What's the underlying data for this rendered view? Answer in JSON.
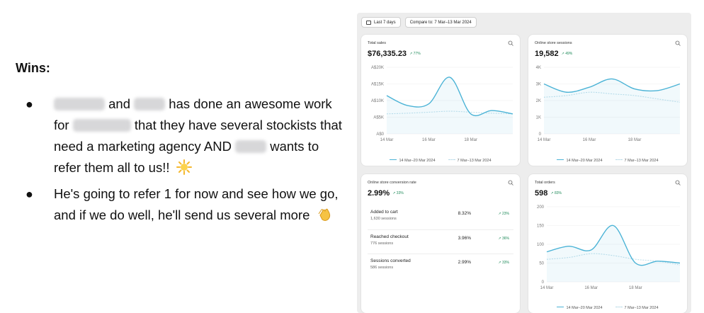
{
  "slide": {
    "heading": "Wins:",
    "bullet1": {
      "t1": "and",
      "t2": "has done an awesome work for",
      "t3": "that they have several stockists that need a marketing agency AND",
      "t4": "wants to refer them all to us!!"
    },
    "bullet2": "He's going to refer 1 for now and see how we go, and if we do well, he'll send us several more"
  },
  "filters": {
    "date_range": "Last 7 days",
    "compare": "Compare to: 7 Mar–13 Mar 2024"
  },
  "legend": {
    "current": "14 Mar–20 Mar 2024",
    "previous": "7 Mar–13 Mar 2024"
  },
  "colors": {
    "current": "#4bb3d6",
    "previous": "#bfe0ec",
    "positive": "#1f8a5a"
  },
  "cards": {
    "total_sales": {
      "title": "Total sales",
      "value": "$76,335.23",
      "delta": "↗ 77%",
      "y_ticks": [
        "A$20K",
        "A$15K",
        "A$10K",
        "A$5K",
        "A$0"
      ],
      "x_ticks": [
        "14 Mar",
        "16 Mar",
        "18 Mar"
      ]
    },
    "sessions": {
      "title": "Online store sessions",
      "value": "19,582",
      "delta": "↗ 49%",
      "y_ticks": [
        "4K",
        "3K",
        "2K",
        "1K",
        "0"
      ],
      "x_ticks": [
        "14 Mar",
        "16 Mar",
        "18 Mar"
      ]
    },
    "conversion": {
      "title": "Online store conversion rate",
      "value": "2.99%",
      "delta": "↗ 33%",
      "rows": [
        {
          "label": "Added to cart",
          "sessions": "1,630 sessions",
          "pct": "8.32%",
          "delta": "↗ 23%"
        },
        {
          "label": "Reached checkout",
          "sessions": "776 sessions",
          "pct": "3.96%",
          "delta": "↗ 36%"
        },
        {
          "label": "Sessions converted",
          "sessions": "586 sessions",
          "pct": "2.99%",
          "delta": "↗ 33%"
        }
      ]
    },
    "orders": {
      "title": "Total orders",
      "value": "598",
      "delta": "↗ 83%",
      "y_ticks": [
        "200",
        "150",
        "100",
        "50",
        "0"
      ],
      "x_ticks": [
        "14 Mar",
        "16 Mar",
        "18 Mar"
      ]
    }
  },
  "chart_data": [
    {
      "type": "line",
      "title": "Total sales",
      "x": [
        "14 Mar",
        "15 Mar",
        "16 Mar",
        "17 Mar",
        "18 Mar",
        "19 Mar",
        "20 Mar"
      ],
      "ylim": [
        0,
        20000
      ],
      "series": [
        {
          "name": "14 Mar–20 Mar 2024",
          "values": [
            11500,
            8500,
            9000,
            17000,
            6000,
            7000,
            6000
          ]
        },
        {
          "name": "7 Mar–13 Mar 2024",
          "values": [
            6000,
            6200,
            6500,
            6800,
            6500,
            6200,
            6000
          ]
        }
      ]
    },
    {
      "type": "line",
      "title": "Online store sessions",
      "x": [
        "14 Mar",
        "15 Mar",
        "16 Mar",
        "17 Mar",
        "18 Mar",
        "19 Mar",
        "20 Mar"
      ],
      "ylim": [
        0,
        4000
      ],
      "series": [
        {
          "name": "14 Mar–20 Mar 2024",
          "values": [
            3000,
            2500,
            2800,
            3300,
            2700,
            2600,
            3000
          ]
        },
        {
          "name": "7 Mar–13 Mar 2024",
          "values": [
            2200,
            2300,
            2500,
            2400,
            2300,
            2100,
            1900
          ]
        }
      ]
    },
    {
      "type": "line",
      "title": "Total orders",
      "x": [
        "14 Mar",
        "15 Mar",
        "16 Mar",
        "17 Mar",
        "18 Mar",
        "19 Mar",
        "20 Mar"
      ],
      "ylim": [
        0,
        200
      ],
      "series": [
        {
          "name": "14 Mar–20 Mar 2024",
          "values": [
            80,
            95,
            85,
            150,
            50,
            55,
            50
          ]
        },
        {
          "name": "7 Mar–13 Mar 2024",
          "values": [
            60,
            65,
            75,
            70,
            60,
            55,
            45
          ]
        }
      ]
    }
  ]
}
